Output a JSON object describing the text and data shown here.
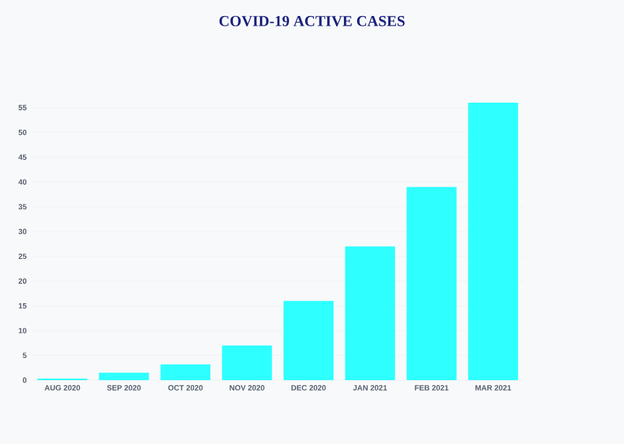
{
  "chart_data": {
    "type": "bar",
    "title": "COVID-19 ACTIVE CASES",
    "categories": [
      "AUG 2020",
      "SEP 2020",
      "OCT 2020",
      "NOV 2020",
      "DEC 2020",
      "JAN 2021",
      "FEB 2021",
      "MAR 2021"
    ],
    "values": [
      0.3,
      1.5,
      3.2,
      7,
      16,
      27,
      39,
      56
    ],
    "color": "#2effff",
    "ylim": [
      0,
      56
    ],
    "yticks": [
      0,
      5,
      10,
      15,
      20,
      25,
      30,
      35,
      40,
      45,
      50,
      55
    ],
    "grid": "y"
  }
}
